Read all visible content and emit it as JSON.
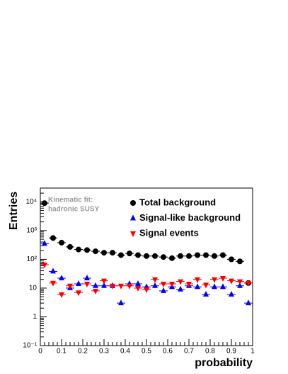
{
  "chart_data": {
    "type": "scatter",
    "xlabel": "probability",
    "ylabel": "Entries",
    "annotation": [
      "Kinematic fit:",
      "hadronic SUSY"
    ],
    "x": [
      0.02,
      0.06,
      0.1,
      0.14,
      0.18,
      0.22,
      0.26,
      0.3,
      0.34,
      0.38,
      0.42,
      0.46,
      0.5,
      0.54,
      0.58,
      0.62,
      0.66,
      0.7,
      0.74,
      0.78,
      0.82,
      0.86,
      0.9,
      0.94,
      0.98
    ],
    "series": [
      {
        "name": "Total background",
        "color": "#000000",
        "marker": "circle",
        "values": [
          9000,
          550,
          380,
          270,
          220,
          210,
          190,
          170,
          170,
          140,
          160,
          140,
          130,
          130,
          120,
          110,
          130,
          130,
          140,
          140,
          130,
          140,
          100,
          85,
          15
        ]
      },
      {
        "name": "Signal-like background",
        "color": "#0000ff",
        "marker": "triangle-up",
        "values": [
          350,
          38,
          22,
          10,
          14,
          22,
          12,
          12,
          12,
          3,
          14,
          14,
          11,
          12,
          8,
          11,
          9,
          12,
          11,
          6,
          11,
          11,
          6,
          12,
          3
        ]
      },
      {
        "name": "Signal events",
        "color": "#ff0000",
        "marker": "triangle-down",
        "values": [
          65,
          15,
          6,
          12,
          7,
          14,
          8,
          18,
          12,
          12,
          12,
          10,
          9,
          20,
          14,
          14,
          17,
          14,
          20,
          13,
          20,
          22,
          18,
          17,
          15
        ]
      }
    ],
    "xlim": [
      0,
      1
    ],
    "xticks": [
      0,
      0.1,
      0.2,
      0.3,
      0.4,
      0.5,
      0.6,
      0.7,
      0.8,
      0.9,
      1
    ],
    "ylim": [
      0.1,
      30000
    ],
    "ylog": true,
    "yticks": [
      {
        "value": 0.1,
        "label": "10⁻¹"
      },
      1,
      10,
      {
        "value": 100,
        "label": "10²"
      },
      {
        "value": 1000,
        "label": "10³"
      },
      {
        "value": 10000,
        "label": "10⁴"
      }
    ],
    "legend": "upper-right"
  }
}
